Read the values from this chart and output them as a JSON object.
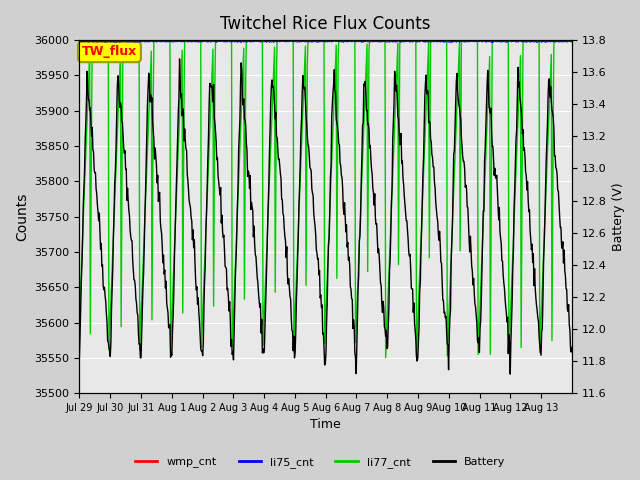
{
  "title": "Twitchel Rice Flux Counts",
  "xlabel": "Time",
  "ylabel_left": "Counts",
  "ylabel_right": "Battery (V)",
  "ylim_left": [
    35500,
    36000
  ],
  "ylim_right": [
    11.6,
    13.8
  ],
  "x_tick_labels": [
    "Jul 29",
    "Jul 30",
    "Jul 31",
    "Aug 1",
    "Aug 2",
    "Aug 3",
    "Aug 4",
    "Aug 5",
    "Aug 6",
    "Aug 7",
    "Aug 8",
    "Aug 9",
    "Aug 10",
    "Aug 11",
    "Aug 12",
    "Aug 13"
  ],
  "bg_color": "#e8e8e8",
  "fig_bg_color": "#d0d0d0",
  "legend_items": [
    "wmp_cnt",
    "li75_cnt",
    "li77_cnt",
    "Battery"
  ],
  "legend_colors": [
    "#ff0000",
    "#0000ff",
    "#00ff00",
    "#000000"
  ],
  "annotation_text": "TW_flux",
  "annotation_color": "#ff0000",
  "annotation_bg": "#ffff00",
  "annotation_edge": "#999900",
  "yticks_left": [
    35500,
    35550,
    35600,
    35650,
    35700,
    35750,
    35800,
    35850,
    35900,
    35950,
    36000
  ],
  "yticks_right": [
    11.6,
    11.8,
    12.0,
    12.2,
    12.4,
    12.6,
    12.8,
    13.0,
    13.2,
    13.4,
    13.6,
    13.8
  ]
}
